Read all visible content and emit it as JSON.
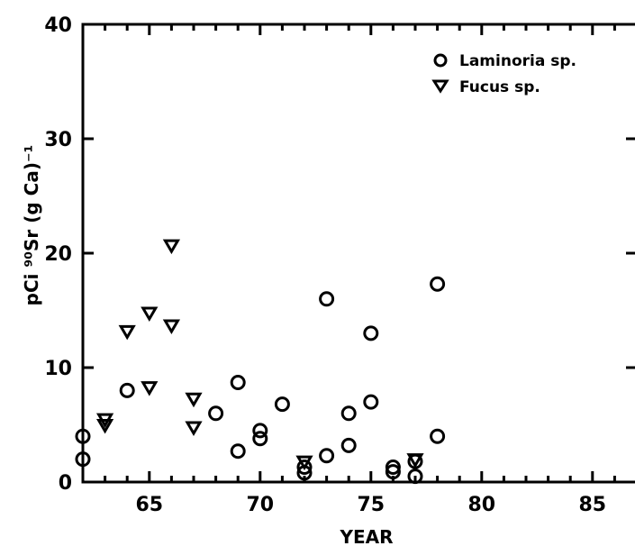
{
  "chart_data": {
    "type": "scatter",
    "xlabel": "YEAR",
    "ylabel": "pCi ⁹⁰Sr (g Ca)⁻¹",
    "xlim": [
      62,
      87
    ],
    "ylim": [
      0,
      40
    ],
    "xticks": [
      65,
      70,
      75,
      80,
      85
    ],
    "yticks": [
      0,
      10,
      20,
      30,
      40
    ],
    "grid": false,
    "legend_position": "top-right",
    "series": [
      {
        "name": "Laminoria sp.",
        "marker": "circle",
        "points": [
          {
            "x": 62,
            "y": 4.0
          },
          {
            "x": 62,
            "y": 2.0
          },
          {
            "x": 64,
            "y": 8.0
          },
          {
            "x": 68,
            "y": 6.0
          },
          {
            "x": 69,
            "y": 8.7
          },
          {
            "x": 69,
            "y": 2.7
          },
          {
            "x": 70,
            "y": 4.5
          },
          {
            "x": 70,
            "y": 3.8
          },
          {
            "x": 71,
            "y": 6.8
          },
          {
            "x": 72,
            "y": 1.3
          },
          {
            "x": 72,
            "y": 0.8
          },
          {
            "x": 73,
            "y": 16.0
          },
          {
            "x": 73,
            "y": 2.3
          },
          {
            "x": 74,
            "y": 6.0
          },
          {
            "x": 74,
            "y": 3.2
          },
          {
            "x": 75,
            "y": 13.0
          },
          {
            "x": 75,
            "y": 7.0
          },
          {
            "x": 76,
            "y": 1.3
          },
          {
            "x": 76,
            "y": 0.9
          },
          {
            "x": 77,
            "y": 1.8
          },
          {
            "x": 77,
            "y": 0.5
          },
          {
            "x": 78,
            "y": 17.3
          },
          {
            "x": 78,
            "y": 4.0
          }
        ]
      },
      {
        "name": "Fucus sp.",
        "marker": "triangle-down",
        "points": [
          {
            "x": 63,
            "y": 5.5
          },
          {
            "x": 63,
            "y": 5.0
          },
          {
            "x": 64,
            "y": 13.2
          },
          {
            "x": 65,
            "y": 14.8
          },
          {
            "x": 65,
            "y": 8.3
          },
          {
            "x": 66,
            "y": 20.7
          },
          {
            "x": 66,
            "y": 13.7
          },
          {
            "x": 67,
            "y": 7.3
          },
          {
            "x": 67,
            "y": 4.8
          },
          {
            "x": 72,
            "y": 1.8
          },
          {
            "x": 77,
            "y": 2.0
          }
        ]
      }
    ]
  },
  "colors": {
    "ink": "#000000",
    "background": "#ffffff"
  }
}
